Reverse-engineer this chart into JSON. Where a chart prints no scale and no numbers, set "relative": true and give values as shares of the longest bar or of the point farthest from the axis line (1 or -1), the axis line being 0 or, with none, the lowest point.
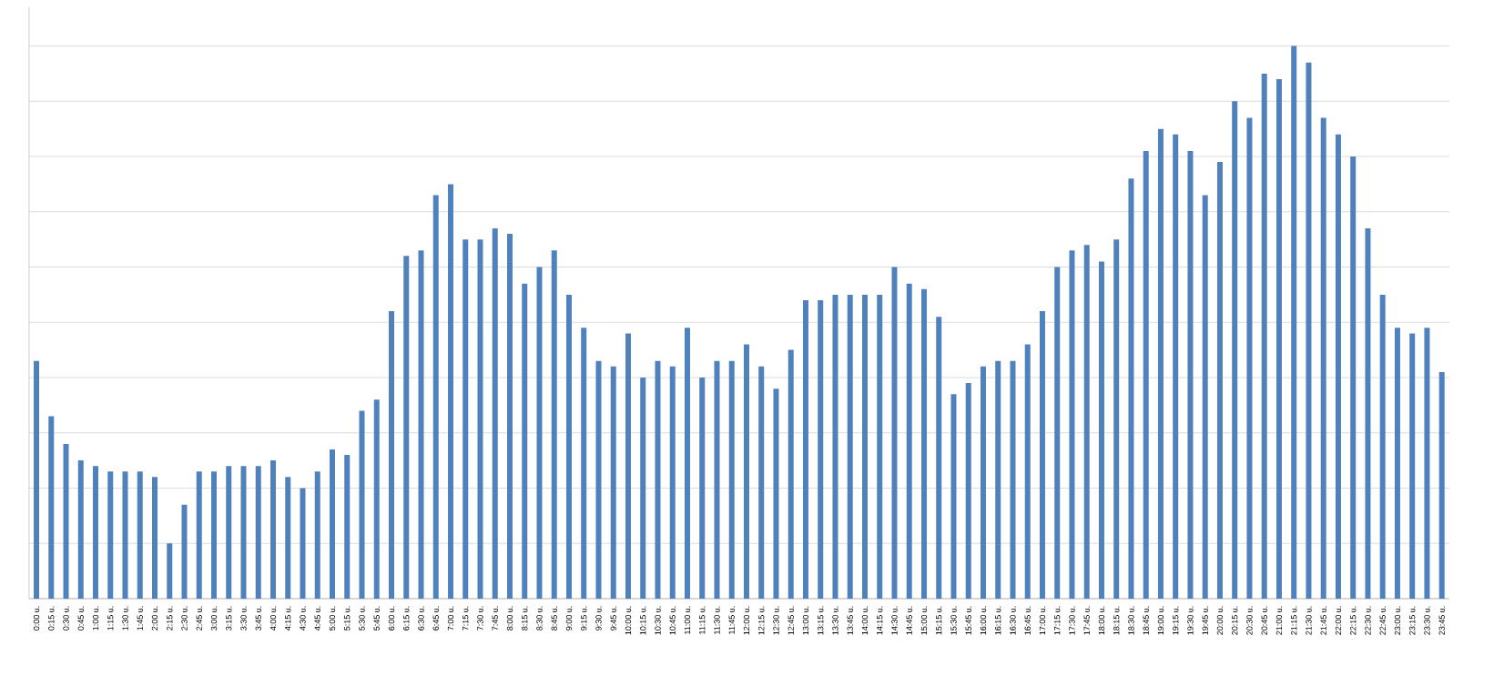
{
  "chart_data": {
    "type": "bar",
    "relative": true,
    "color": "#4f81bd",
    "grid": "y",
    "categories": [
      "0:00 u.",
      "0:15 u.",
      "0:30 u.",
      "0:45 u.",
      "1:00 u.",
      "1:15 u.",
      "1:30 u.",
      "1:45 u.",
      "2:00 u.",
      "2:15 u.",
      "2:30 u.",
      "2:45 u.",
      "3:00 u.",
      "3:15 u.",
      "3:30 u.",
      "3:45 u.",
      "4:00 u.",
      "4:15 u.",
      "4:30 u.",
      "4:45 u.",
      "5:00 u.",
      "5:15 u.",
      "5:30 u.",
      "5:45 u.",
      "6:00 u.",
      "6:15 u.",
      "6:30 u.",
      "6:45 u.",
      "7:00 u.",
      "7:15 u.",
      "7:30 u.",
      "7:45 u.",
      "8:00 u.",
      "8:15 u.",
      "8:30 u.",
      "8:45 u.",
      "9:00 u.",
      "9:15 u.",
      "9:30 u.",
      "9:45 u.",
      "10:00 u.",
      "10:15 u.",
      "10:30 u.",
      "10:45 u.",
      "11:00 u.",
      "11:15 u.",
      "11:30 u.",
      "11:45 u.",
      "12:00 u.",
      "12:15 u.",
      "12:30 u.",
      "12:45 u.",
      "13:00 u.",
      "13:15 u.",
      "13:30 u.",
      "13:45 u.",
      "14:00 u.",
      "14:15 u.",
      "14:30 u.",
      "14:45 u.",
      "15:00 u.",
      "15:15 u.",
      "15:30 u.",
      "15:45 u.",
      "16:00 u.",
      "16:15 u.",
      "16:30 u.",
      "16:45 u.",
      "17:00 u.",
      "17:15 u.",
      "17:30 u.",
      "17:45 u.",
      "18:00 u.",
      "18:15 u.",
      "18:30 u.",
      "18:45 u.",
      "19:00 u.",
      "19:15 u.",
      "19:30 u.",
      "19:45 u.",
      "20:00 u.",
      "20:15 u.",
      "20:30 u.",
      "20:45 u.",
      "21:00 u.",
      "21:15 u.",
      "21:30 u.",
      "21:45 u.",
      "22:00 u.",
      "22:15 u.",
      "22:30 u.",
      "22:45 u.",
      "23:00 u.",
      "23:15 u.",
      "23:30 u.",
      "23:45 u."
    ],
    "values": [
      0.43,
      0.33,
      0.28,
      0.25,
      0.24,
      0.23,
      0.23,
      0.23,
      0.22,
      0.1,
      0.17,
      0.23,
      0.23,
      0.24,
      0.24,
      0.24,
      0.25,
      0.22,
      0.2,
      0.23,
      0.27,
      0.26,
      0.34,
      0.36,
      0.52,
      0.62,
      0.63,
      0.73,
      0.75,
      0.65,
      0.65,
      0.67,
      0.66,
      0.57,
      0.6,
      0.63,
      0.55,
      0.49,
      0.43,
      0.42,
      0.48,
      0.4,
      0.43,
      0.42,
      0.49,
      0.4,
      0.43,
      0.43,
      0.46,
      0.42,
      0.38,
      0.45,
      0.54,
      0.54,
      0.55,
      0.55,
      0.55,
      0.55,
      0.6,
      0.57,
      0.56,
      0.51,
      0.37,
      0.39,
      0.42,
      0.43,
      0.43,
      0.46,
      0.52,
      0.6,
      0.63,
      0.64,
      0.61,
      0.65,
      0.76,
      0.81,
      0.85,
      0.84,
      0.81,
      0.73,
      0.79,
      0.9,
      0.87,
      0.95,
      0.94,
      1,
      0.97,
      0.87,
      0.84,
      0.8,
      0.67,
      0.55,
      0.49,
      0.48,
      0.49,
      0.41
    ]
  }
}
